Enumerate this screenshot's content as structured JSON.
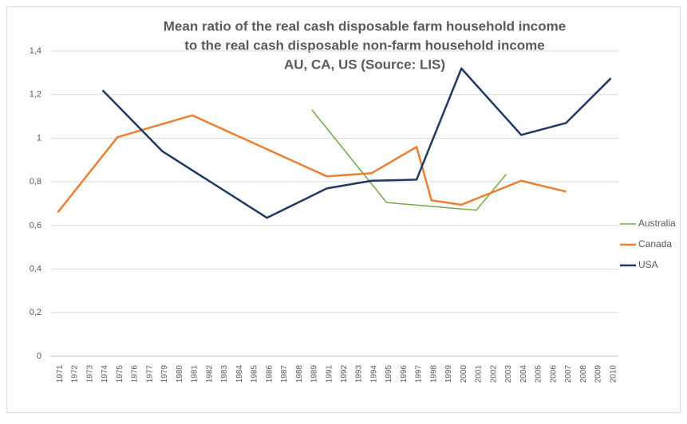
{
  "chart_data": {
    "type": "line",
    "title": [
      "Mean ratio of the real cash disposable farm household income",
      "to the real cash disposable non-farm household income",
      "AU, CA, US (Source: LIS)"
    ],
    "categories": [
      "1971",
      "1972",
      "1973",
      "1974",
      "1975",
      "1976",
      "1977",
      "1979",
      "1980",
      "1981",
      "1982",
      "1983",
      "1984",
      "1985",
      "1986",
      "1987",
      "1988",
      "1989",
      "1991",
      "1992",
      "1993",
      "1994",
      "1995",
      "1996",
      "1997",
      "1998",
      "1999",
      "2000",
      "2001",
      "2002",
      "2003",
      "2004",
      "2005",
      "2006",
      "2007",
      "2008",
      "2009",
      "2010"
    ],
    "series": [
      {
        "name": "Australia",
        "color": "#70ad47",
        "x": [
          "1989",
          "1995",
          "2001",
          "2003"
        ],
        "values": [
          1.13,
          0.705,
          0.67,
          0.835
        ]
      },
      {
        "name": "Canada",
        "color": "#ed7d31",
        "x": [
          "1971",
          "1975",
          "1981",
          "1991",
          "1994",
          "1997",
          "1998",
          "2000",
          "2004",
          "2007"
        ],
        "values": [
          0.66,
          1.005,
          1.105,
          0.825,
          0.84,
          0.96,
          0.715,
          0.695,
          0.805,
          0.755
        ]
      },
      {
        "name": "USA",
        "color": "#203864",
        "x": [
          "1974",
          "1979",
          "1986",
          "1991",
          "1994",
          "1997",
          "2000",
          "2004",
          "2007",
          "2010"
        ],
        "values": [
          1.22,
          0.94,
          0.635,
          0.77,
          0.805,
          0.81,
          1.32,
          1.015,
          1.07,
          1.275
        ]
      }
    ],
    "ylim": [
      0,
      1.4
    ],
    "yticks": [
      0,
      {
        "value": 0.2,
        "label": "0,2"
      },
      {
        "value": 0.4,
        "label": "0,4"
      },
      {
        "value": 0.6,
        "label": "0,6"
      },
      {
        "value": 0.8,
        "label": "0,8"
      },
      1,
      {
        "value": 1.2,
        "label": "1,2"
      },
      {
        "value": 1.4,
        "label": "1,4"
      }
    ],
    "grid": true,
    "legend": "right"
  }
}
